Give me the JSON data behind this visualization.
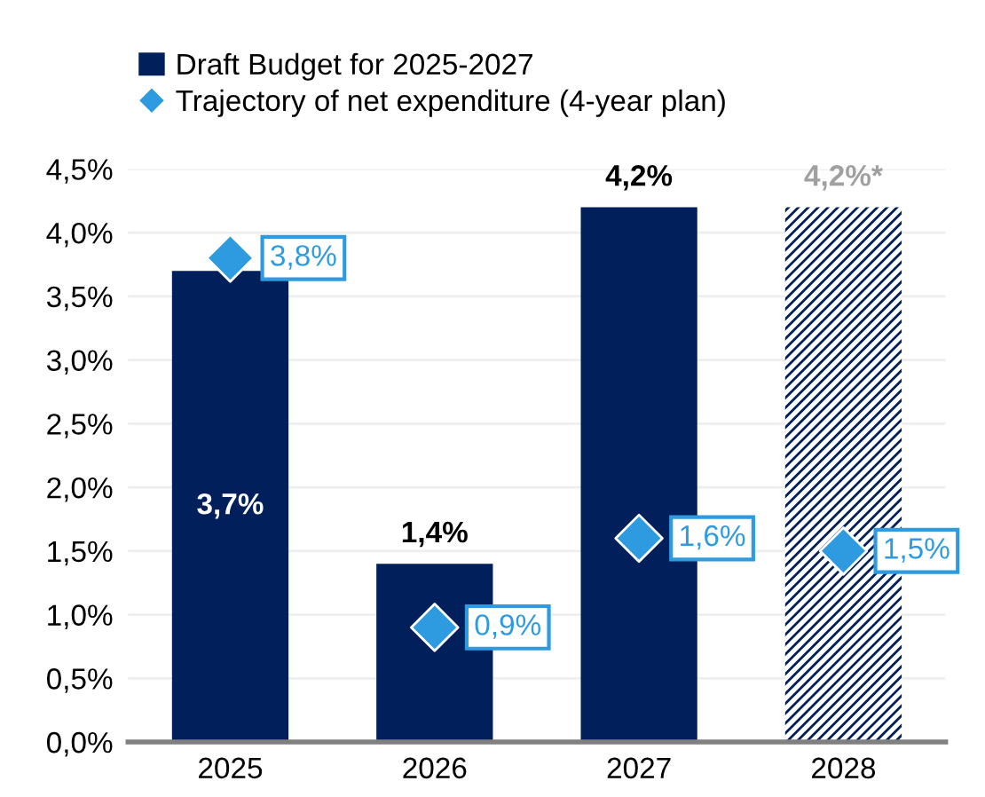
{
  "chart_data": {
    "type": "bar",
    "categories": [
      "2025",
      "2026",
      "2027",
      "2028"
    ],
    "series": [
      {
        "name": "Draft Budget for 2025-2027",
        "color": "#001f5b",
        "values": [
          3.7,
          1.4,
          4.2,
          null
        ],
        "value_labels": [
          "3,7%",
          "1,4%",
          "4,2%",
          null
        ]
      },
      {
        "color": "#001f5b",
        "values": [
          null,
          null,
          null,
          4.2
        ],
        "value_labels": [
          null,
          null,
          null,
          "4,2%*"
        ]
      },
      {
        "name": "Trajectory of net expenditure (4-year plan)",
        "type": "scatter",
        "marker": "diamond",
        "color": "#2e9be0",
        "values": [
          3.8,
          0.9,
          1.6,
          1.5
        ],
        "value_labels": [
          "3,8%",
          "0,9%",
          "1,6%",
          "1,5%"
        ]
      }
    ],
    "ylim": [
      0,
      4.5
    ],
    "yticks": [
      {
        "value": 0,
        "label": "0,0%"
      },
      {
        "value": 0.5,
        "label": "0,5%"
      },
      {
        "value": 1,
        "label": "1,0%"
      },
      {
        "value": 1.5,
        "label": "1,5%"
      },
      {
        "value": 2,
        "label": "2,0%"
      },
      {
        "value": 2.5,
        "label": "2,5%"
      },
      {
        "value": 3,
        "label": "3,0%"
      },
      {
        "value": 3.5,
        "label": "3,5%"
      },
      {
        "value": 4,
        "label": "4,0%"
      },
      {
        "value": 4.5,
        "label": "4,5%"
      }
    ],
    "grid": "y",
    "legend": "top left"
  }
}
